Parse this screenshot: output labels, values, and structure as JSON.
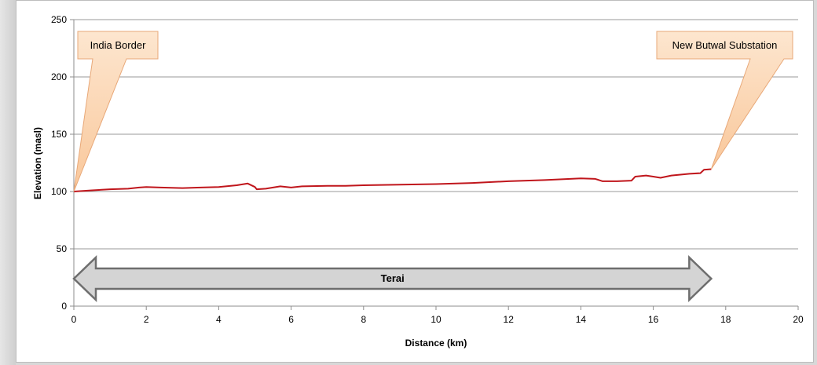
{
  "chart_data": {
    "type": "line",
    "title": "",
    "xlabel": "Distance (km)",
    "ylabel": "Elevation (masl)",
    "xlim": [
      0,
      20
    ],
    "ylim": [
      0,
      250
    ],
    "xticks": [
      0,
      2,
      4,
      6,
      8,
      10,
      12,
      14,
      16,
      18,
      20
    ],
    "yticks": [
      0,
      50,
      100,
      150,
      200,
      250
    ],
    "grid": "horizontal",
    "series": [
      {
        "name": "",
        "color": "#c0161c",
        "points": [
          [
            0,
            100
          ],
          [
            0.5,
            101
          ],
          [
            1.0,
            102
          ],
          [
            1.5,
            102.5
          ],
          [
            1.8,
            103.5
          ],
          [
            2.0,
            104
          ],
          [
            2.4,
            103.5
          ],
          [
            3.0,
            103
          ],
          [
            3.5,
            103.5
          ],
          [
            4.0,
            104
          ],
          [
            4.5,
            105.5
          ],
          [
            4.8,
            107
          ],
          [
            5.0,
            104
          ],
          [
            5.05,
            102
          ],
          [
            5.3,
            102.5
          ],
          [
            5.7,
            104.5
          ],
          [
            6.0,
            103.5
          ],
          [
            6.3,
            104.5
          ],
          [
            7.0,
            105
          ],
          [
            7.5,
            105
          ],
          [
            8.0,
            105.5
          ],
          [
            9.0,
            106
          ],
          [
            10.0,
            106.5
          ],
          [
            11.0,
            107.5
          ],
          [
            12.0,
            109
          ],
          [
            13.0,
            110
          ],
          [
            14.0,
            111.5
          ],
          [
            14.4,
            111
          ],
          [
            14.6,
            109
          ],
          [
            15.0,
            109
          ],
          [
            15.4,
            109.5
          ],
          [
            15.5,
            113
          ],
          [
            15.8,
            114
          ],
          [
            16.0,
            113
          ],
          [
            16.2,
            112
          ],
          [
            16.5,
            114
          ],
          [
            17.0,
            115.5
          ],
          [
            17.3,
            116
          ],
          [
            17.4,
            119
          ],
          [
            17.6,
            119.5
          ]
        ]
      }
    ],
    "annotations": [
      {
        "text": "India Border",
        "point": [
          0,
          100
        ]
      },
      {
        "text": "New Butwal Substation",
        "point": [
          17.6,
          119.5
        ]
      }
    ],
    "range_arrow": {
      "label": "Terai",
      "from": 0,
      "to": 17.6
    }
  }
}
